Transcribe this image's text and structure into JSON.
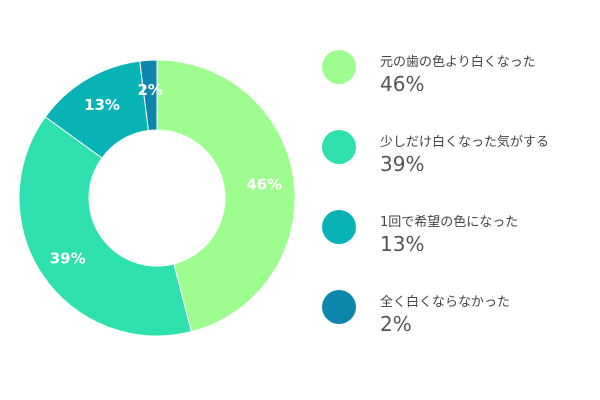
{
  "chart_data": {
    "type": "pie",
    "variant": "donut",
    "categories": [
      "元の歯の色より白くなった",
      "少しだけ白くなった気がする",
      "1回で希望の色になった",
      "全く白くならなかった"
    ],
    "values": [
      46,
      39,
      13,
      2
    ],
    "value_labels": [
      "46%",
      "39%",
      "13%",
      "2%"
    ],
    "colors": [
      "#9dfd8f",
      "#2ee0ad",
      "#07b3b5",
      "#0e86ab"
    ],
    "legend_placement": "right"
  }
}
